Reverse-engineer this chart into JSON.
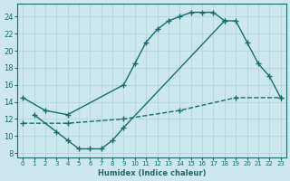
{
  "xlabel": "Humidex (Indice chaleur)",
  "bg_color": "#cce8ed",
  "line_color": "#1a6b6b",
  "grid_color": "#b8d8dc",
  "xlim": [
    -0.5,
    23.5
  ],
  "ylim": [
    7.5,
    25.5
  ],
  "xticks": [
    0,
    1,
    2,
    3,
    4,
    5,
    6,
    7,
    8,
    9,
    10,
    11,
    12,
    13,
    14,
    15,
    16,
    17,
    18,
    19,
    20,
    21,
    22,
    23
  ],
  "yticks": [
    8,
    10,
    12,
    14,
    16,
    18,
    20,
    22,
    24
  ],
  "curve1_x": [
    0,
    2,
    4,
    9,
    10,
    11,
    12,
    13,
    14,
    15,
    16,
    17,
    18
  ],
  "curve1_y": [
    14.5,
    13.0,
    12.5,
    16.0,
    18.5,
    21.0,
    22.5,
    23.5,
    24.0,
    24.5,
    24.5,
    24.5,
    23.5
  ],
  "curve2_x": [
    1,
    3,
    4,
    5,
    6,
    7,
    8,
    9,
    18,
    19,
    20,
    21,
    22,
    23
  ],
  "curve2_y": [
    12.5,
    10.5,
    9.5,
    8.5,
    8.5,
    8.5,
    9.5,
    11.0,
    23.5,
    23.5,
    21.0,
    18.5,
    17.0,
    14.5
  ],
  "curve3_x": [
    0,
    4,
    9,
    14,
    19,
    23
  ],
  "curve3_y": [
    11.5,
    11.5,
    12.0,
    13.0,
    14.5,
    14.5
  ]
}
